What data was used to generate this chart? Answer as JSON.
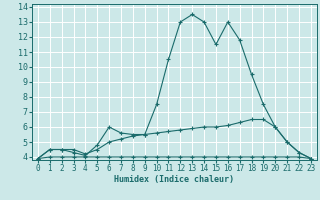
{
  "xlabel": "Humidex (Indice chaleur)",
  "xlim": [
    -0.5,
    23.5
  ],
  "ylim": [
    3.8,
    14.2
  ],
  "yticks": [
    4,
    5,
    6,
    7,
    8,
    9,
    10,
    11,
    12,
    13,
    14
  ],
  "xticks": [
    0,
    1,
    2,
    3,
    4,
    5,
    6,
    7,
    8,
    9,
    10,
    11,
    12,
    13,
    14,
    15,
    16,
    17,
    18,
    19,
    20,
    21,
    22,
    23
  ],
  "bg_color": "#cce8e8",
  "grid_color": "#ffffff",
  "line_color": "#1a6b6b",
  "curves": [
    {
      "x": [
        0,
        1,
        2,
        3,
        4,
        5,
        6,
        7,
        8,
        9,
        10,
        11,
        12,
        13,
        14,
        15,
        16,
        17,
        18,
        19,
        20,
        21,
        22,
        23
      ],
      "y": [
        3.9,
        4.0,
        4.0,
        4.0,
        4.0,
        4.0,
        4.0,
        4.0,
        4.0,
        4.0,
        4.0,
        4.0,
        4.0,
        4.0,
        4.0,
        4.0,
        4.0,
        4.0,
        4.0,
        4.0,
        4.0,
        4.0,
        4.0,
        3.9
      ]
    },
    {
      "x": [
        0,
        1,
        2,
        3,
        4,
        5,
        6,
        7,
        8,
        9,
        10,
        11,
        12,
        13,
        14,
        15,
        16,
        17,
        18,
        19,
        20,
        21,
        22,
        23
      ],
      "y": [
        3.9,
        4.5,
        4.5,
        4.5,
        4.2,
        4.5,
        5.0,
        5.2,
        5.4,
        5.5,
        5.6,
        5.7,
        5.8,
        5.9,
        6.0,
        6.0,
        6.1,
        6.3,
        6.5,
        6.5,
        6.0,
        5.0,
        4.3,
        3.9
      ]
    },
    {
      "x": [
        0,
        1,
        2,
        3,
        4,
        5,
        6,
        7,
        8,
        9,
        10,
        11,
        12,
        13,
        14,
        15,
        16,
        17,
        18,
        19,
        20,
        21,
        22,
        23
      ],
      "y": [
        3.9,
        4.5,
        4.5,
        4.3,
        4.1,
        4.8,
        6.0,
        5.6,
        5.5,
        5.5,
        7.5,
        10.5,
        13.0,
        13.5,
        13.0,
        11.5,
        13.0,
        11.8,
        9.5,
        7.5,
        6.0,
        5.0,
        4.3,
        3.9
      ]
    }
  ]
}
